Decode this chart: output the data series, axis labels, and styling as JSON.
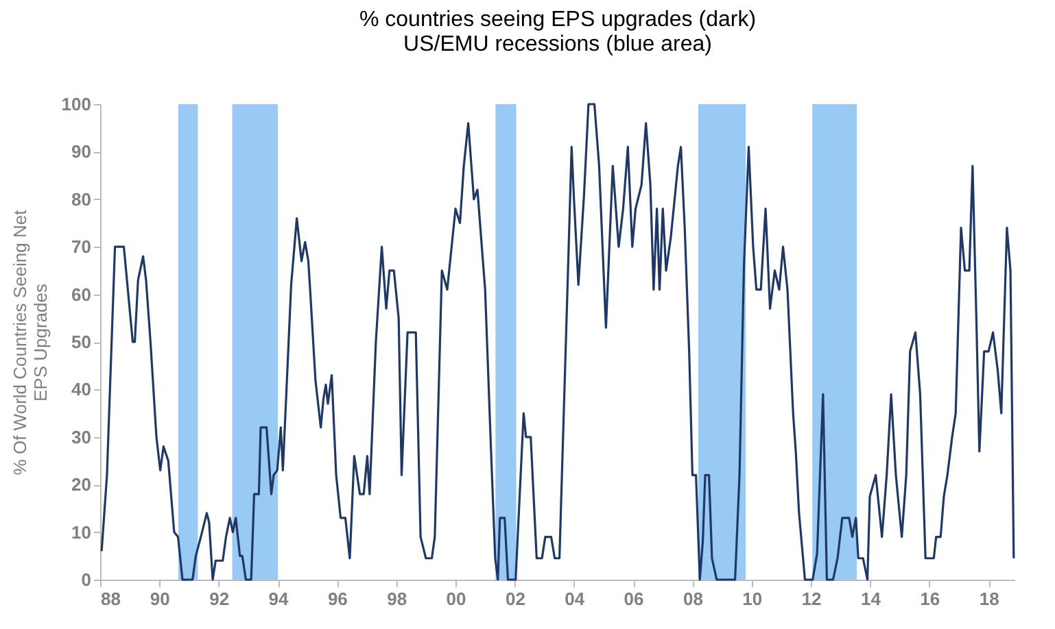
{
  "chart_data": {
    "type": "line",
    "title": "% countries seeing EPS upgrades (dark)",
    "subtitle": "US/EMU recessions (blue area)",
    "ylabel": "% Of World Countries Seeing Net EPS Upgrades",
    "xlim": [
      1988,
      2018.9
    ],
    "xticks": [
      {
        "value": 1988,
        "label": "88"
      },
      {
        "value": 1990,
        "label": "90"
      },
      {
        "value": 1992,
        "label": "92"
      },
      {
        "value": 1994,
        "label": "94"
      },
      {
        "value": 1996,
        "label": "96"
      },
      {
        "value": 1998,
        "label": "98"
      },
      {
        "value": 2000,
        "label": "00"
      },
      {
        "value": 2002,
        "label": "02"
      },
      {
        "value": 2004,
        "label": "04"
      },
      {
        "value": 2006,
        "label": "06"
      },
      {
        "value": 2008,
        "label": "08"
      },
      {
        "value": 2010,
        "label": "10"
      },
      {
        "value": 2012,
        "label": "12"
      },
      {
        "value": 2014,
        "label": "14"
      },
      {
        "value": 2016,
        "label": "16"
      },
      {
        "value": 2018,
        "label": "18"
      }
    ],
    "ylim": [
      0,
      100
    ],
    "yticks": [
      0,
      10,
      20,
      30,
      40,
      50,
      60,
      70,
      80,
      90,
      100
    ],
    "grid": false,
    "line_style": "solid",
    "bands": [
      {
        "axis": "x",
        "from": 1990.64,
        "to": 1991.3,
        "color": "#99c9f5"
      },
      {
        "axis": "x",
        "from": 1992.46,
        "to": 1994.0,
        "color": "#99c9f5"
      },
      {
        "axis": "x",
        "from": 2001.35,
        "to": 2002.05,
        "color": "#99c9f5"
      },
      {
        "axis": "x",
        "from": 2008.2,
        "to": 2009.8,
        "color": "#99c9f5"
      },
      {
        "axis": "x",
        "from": 2012.05,
        "to": 2013.55,
        "color": "#99c9f5"
      }
    ],
    "series": [
      {
        "color": "#1f3864",
        "x": [
          1988.05,
          1988.23,
          1988.5,
          1988.8,
          1989.1,
          1989.17,
          1989.28,
          1989.45,
          1989.55,
          1989.7,
          1989.9,
          1990.03,
          1990.14,
          1990.3,
          1990.5,
          1990.63,
          1990.78,
          1991.12,
          1991.23,
          1991.4,
          1991.6,
          1991.68,
          1991.8,
          1991.9,
          1992.14,
          1992.25,
          1992.38,
          1992.48,
          1992.58,
          1992.72,
          1992.8,
          1992.92,
          1993.1,
          1993.2,
          1993.36,
          1993.42,
          1993.62,
          1993.78,
          1993.86,
          1993.98,
          1994.1,
          1994.17,
          1994.3,
          1994.45,
          1994.64,
          1994.8,
          1994.92,
          1995.03,
          1995.1,
          1995.27,
          1995.45,
          1995.54,
          1995.62,
          1995.69,
          1995.82,
          1995.97,
          1996.12,
          1996.28,
          1996.43,
          1996.58,
          1996.77,
          1996.9,
          1997.02,
          1997.1,
          1997.31,
          1997.51,
          1997.66,
          1997.77,
          1997.92,
          1998.08,
          1998.18,
          1998.38,
          1998.66,
          1998.82,
          1999.0,
          1999.2,
          1999.3,
          1999.54,
          1999.72,
          2000.0,
          2000.15,
          2000.28,
          2000.43,
          2000.62,
          2000.74,
          2001.0,
          2001.2,
          2001.34,
          2001.43,
          2001.5,
          2001.66,
          2001.77,
          2002.03,
          2002.3,
          2002.38,
          2002.54,
          2002.74,
          2002.92,
          2003.03,
          2003.23,
          2003.35,
          2003.51,
          2003.77,
          2003.92,
          2004.0,
          2004.15,
          2004.34,
          2004.49,
          2004.69,
          2004.85,
          2005.08,
          2005.31,
          2005.51,
          2005.66,
          2005.82,
          2005.97,
          2006.08,
          2006.28,
          2006.43,
          2006.58,
          2006.69,
          2006.8,
          2006.89,
          2007.0,
          2007.11,
          2007.27,
          2007.51,
          2007.61,
          2007.74,
          2007.89,
          2008.0,
          2008.12,
          2008.25,
          2008.35,
          2008.43,
          2008.56,
          2008.66,
          2008.82,
          2009.44,
          2009.59,
          2009.74,
          2009.9,
          2010.05,
          2010.16,
          2010.31,
          2010.47,
          2010.62,
          2010.78,
          2010.93,
          2011.06,
          2011.21,
          2011.4,
          2011.49,
          2011.6,
          2011.8,
          2012.06,
          2012.21,
          2012.41,
          2012.54,
          2012.75,
          2012.9,
          2013.06,
          2013.29,
          2013.4,
          2013.52,
          2013.6,
          2013.76,
          2013.91,
          2013.99,
          2014.19,
          2014.4,
          2014.56,
          2014.71,
          2014.87,
          2015.07,
          2015.22,
          2015.35,
          2015.53,
          2015.69,
          2015.87,
          2016.15,
          2016.23,
          2016.38,
          2016.49,
          2016.61,
          2016.77,
          2016.89,
          2017.07,
          2017.2,
          2017.35,
          2017.46,
          2017.58,
          2017.69,
          2017.85,
          2018.0,
          2018.15,
          2018.31,
          2018.43,
          2018.62,
          2018.74,
          2018.85
        ],
        "values": [
          6,
          22,
          70,
          70,
          50,
          50,
          63,
          68,
          63,
          50,
          30,
          23,
          28,
          25,
          10,
          9,
          0,
          0,
          5,
          9,
          14,
          12,
          0,
          4,
          4,
          9,
          13,
          10,
          13,
          5,
          5,
          0,
          0,
          18,
          18,
          32,
          32,
          18,
          22,
          23,
          32,
          23,
          41,
          62,
          76,
          67,
          71,
          67,
          60,
          42,
          32,
          38,
          41,
          37,
          43,
          22,
          13,
          13,
          4.5,
          26,
          18,
          18,
          26,
          18,
          50,
          70,
          57,
          65,
          65,
          55,
          22,
          52,
          52,
          9,
          4.5,
          4.5,
          9,
          65,
          61,
          78,
          75,
          87,
          96,
          80,
          82,
          61,
          27,
          4.5,
          0,
          13,
          13,
          0,
          0,
          35,
          30,
          30,
          4.5,
          4.5,
          9,
          9,
          4.5,
          4.5,
          59,
          91,
          80,
          62,
          81,
          100,
          100,
          87,
          53,
          87,
          70,
          78,
          91,
          70,
          78,
          83,
          96,
          83,
          61,
          78,
          61,
          78,
          65,
          72,
          87,
          91,
          74,
          48,
          22,
          22,
          0,
          8,
          22,
          22,
          4.5,
          0,
          0,
          22,
          66,
          91,
          70,
          61,
          61,
          78,
          57,
          65,
          61,
          70,
          61,
          35,
          27,
          14,
          0,
          0,
          5.5,
          39,
          0,
          0,
          4.5,
          13,
          13,
          9,
          13,
          4.5,
          4.5,
          0,
          17.5,
          22,
          9,
          22,
          39,
          22,
          9,
          22,
          48,
          52,
          39,
          4.5,
          4.5,
          9,
          9,
          17.5,
          22,
          30,
          35,
          74,
          65,
          65,
          87,
          57,
          27,
          48,
          48,
          52,
          44,
          35,
          74,
          65,
          4.5
        ]
      }
    ]
  }
}
